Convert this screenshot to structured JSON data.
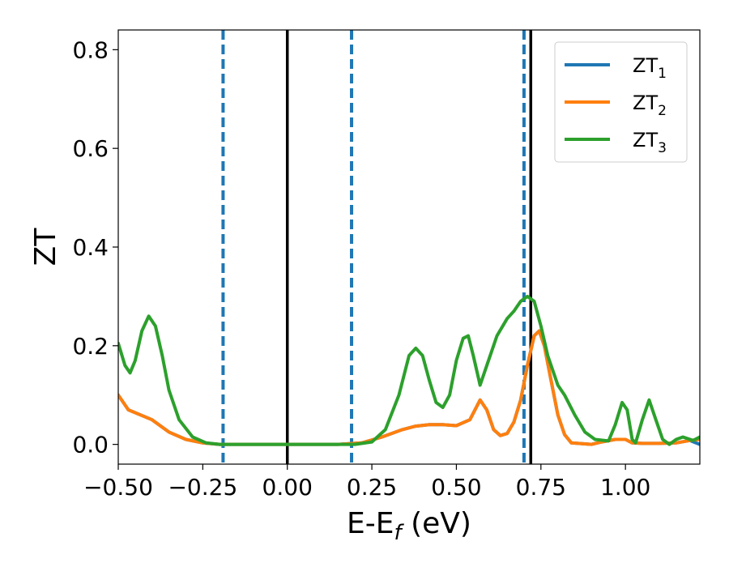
{
  "chart_data": {
    "type": "line",
    "xlabel": "E-E",
    "xlabel_sub": "f",
    "xlabel_unit": " (eV)",
    "ylabel": "ZT",
    "xlim": [
      -0.5,
      1.22
    ],
    "ylim": [
      -0.04,
      0.84
    ],
    "x_ticks": [
      -0.5,
      -0.25,
      0.0,
      0.25,
      0.5,
      0.75,
      1.0
    ],
    "x_tick_labels": [
      "−0.50",
      "−0.25",
      "0.00",
      "0.25",
      "0.50",
      "0.75",
      "1.00"
    ],
    "y_ticks": [
      0.0,
      0.2,
      0.4,
      0.6,
      0.8
    ],
    "y_tick_labels": [
      "0.0",
      "0.2",
      "0.4",
      "0.6",
      "0.8"
    ],
    "grid": false,
    "legend_position": "top-right",
    "vlines": [
      {
        "x": -0.19,
        "style": "dashed",
        "color": "#1f77b4"
      },
      {
        "x": 0.19,
        "style": "dashed",
        "color": "#1f77b4"
      },
      {
        "x": 0.7,
        "style": "dashed",
        "color": "#1f77b4"
      },
      {
        "x": 0.0,
        "style": "solid",
        "color": "#000000"
      },
      {
        "x": 0.72,
        "style": "solid",
        "color": "#000000"
      }
    ],
    "series": [
      {
        "name": "ZT",
        "name_sub": "1",
        "color": "#1f77b4",
        "points": [
          [
            -0.5,
            0.1
          ],
          [
            -0.47,
            0.07
          ],
          [
            -0.4,
            0.05
          ],
          [
            -0.35,
            0.025
          ],
          [
            -0.3,
            0.01
          ],
          [
            -0.25,
            0.003
          ],
          [
            -0.2,
            0.0
          ],
          [
            0.0,
            0.0
          ],
          [
            0.15,
            0.0
          ],
          [
            0.22,
            0.003
          ],
          [
            0.28,
            0.015
          ],
          [
            0.34,
            0.03
          ],
          [
            0.38,
            0.037
          ],
          [
            0.42,
            0.04
          ],
          [
            0.46,
            0.04
          ],
          [
            0.5,
            0.038
          ],
          [
            0.54,
            0.05
          ],
          [
            0.57,
            0.09
          ],
          [
            0.59,
            0.07
          ],
          [
            0.61,
            0.03
          ],
          [
            0.63,
            0.018
          ],
          [
            0.65,
            0.022
          ],
          [
            0.67,
            0.045
          ],
          [
            0.69,
            0.09
          ],
          [
            0.71,
            0.16
          ],
          [
            0.73,
            0.22
          ],
          [
            0.745,
            0.23
          ],
          [
            0.76,
            0.2
          ],
          [
            0.78,
            0.13
          ],
          [
            0.8,
            0.06
          ],
          [
            0.82,
            0.02
          ],
          [
            0.84,
            0.003
          ],
          [
            0.9,
            0.0
          ],
          [
            0.93,
            0.005
          ],
          [
            0.97,
            0.01
          ],
          [
            1.0,
            0.01
          ],
          [
            1.02,
            0.003
          ],
          [
            1.05,
            0.002
          ],
          [
            1.1,
            0.002
          ],
          [
            1.15,
            0.003
          ],
          [
            1.19,
            0.008
          ],
          [
            1.22,
            0.0
          ]
        ]
      },
      {
        "name": "ZT",
        "name_sub": "2",
        "color": "#ff7f0e",
        "points": [
          [
            -0.5,
            0.1
          ],
          [
            -0.47,
            0.07
          ],
          [
            -0.4,
            0.05
          ],
          [
            -0.35,
            0.025
          ],
          [
            -0.3,
            0.01
          ],
          [
            -0.25,
            0.003
          ],
          [
            -0.2,
            0.0
          ],
          [
            0.0,
            0.0
          ],
          [
            0.15,
            0.0
          ],
          [
            0.22,
            0.003
          ],
          [
            0.28,
            0.015
          ],
          [
            0.34,
            0.03
          ],
          [
            0.38,
            0.037
          ],
          [
            0.42,
            0.04
          ],
          [
            0.46,
            0.04
          ],
          [
            0.5,
            0.038
          ],
          [
            0.54,
            0.05
          ],
          [
            0.57,
            0.09
          ],
          [
            0.59,
            0.07
          ],
          [
            0.61,
            0.03
          ],
          [
            0.63,
            0.018
          ],
          [
            0.65,
            0.022
          ],
          [
            0.67,
            0.045
          ],
          [
            0.69,
            0.09
          ],
          [
            0.71,
            0.16
          ],
          [
            0.73,
            0.22
          ],
          [
            0.745,
            0.23
          ],
          [
            0.76,
            0.2
          ],
          [
            0.78,
            0.13
          ],
          [
            0.8,
            0.06
          ],
          [
            0.82,
            0.02
          ],
          [
            0.84,
            0.003
          ],
          [
            0.9,
            0.0
          ],
          [
            0.93,
            0.005
          ],
          [
            0.97,
            0.01
          ],
          [
            1.0,
            0.01
          ],
          [
            1.02,
            0.003
          ],
          [
            1.05,
            0.002
          ],
          [
            1.1,
            0.002
          ],
          [
            1.15,
            0.003
          ],
          [
            1.19,
            0.008
          ],
          [
            1.22,
            0.01
          ]
        ]
      },
      {
        "name": "ZT",
        "name_sub": "3",
        "color": "#2ca02c",
        "points": [
          [
            -0.5,
            0.205
          ],
          [
            -0.48,
            0.16
          ],
          [
            -0.465,
            0.145
          ],
          [
            -0.45,
            0.17
          ],
          [
            -0.43,
            0.23
          ],
          [
            -0.41,
            0.26
          ],
          [
            -0.39,
            0.24
          ],
          [
            -0.37,
            0.18
          ],
          [
            -0.35,
            0.11
          ],
          [
            -0.32,
            0.05
          ],
          [
            -0.28,
            0.015
          ],
          [
            -0.24,
            0.003
          ],
          [
            -0.2,
            0.0
          ],
          [
            0.0,
            0.0
          ],
          [
            0.2,
            0.0
          ],
          [
            0.25,
            0.005
          ],
          [
            0.29,
            0.03
          ],
          [
            0.33,
            0.1
          ],
          [
            0.36,
            0.18
          ],
          [
            0.38,
            0.195
          ],
          [
            0.4,
            0.18
          ],
          [
            0.42,
            0.13
          ],
          [
            0.44,
            0.085
          ],
          [
            0.46,
            0.075
          ],
          [
            0.48,
            0.1
          ],
          [
            0.5,
            0.17
          ],
          [
            0.52,
            0.215
          ],
          [
            0.535,
            0.22
          ],
          [
            0.55,
            0.18
          ],
          [
            0.57,
            0.12
          ],
          [
            0.59,
            0.16
          ],
          [
            0.62,
            0.22
          ],
          [
            0.65,
            0.255
          ],
          [
            0.67,
            0.27
          ],
          [
            0.69,
            0.29
          ],
          [
            0.71,
            0.3
          ],
          [
            0.73,
            0.29
          ],
          [
            0.75,
            0.24
          ],
          [
            0.77,
            0.18
          ],
          [
            0.8,
            0.12
          ],
          [
            0.82,
            0.1
          ],
          [
            0.85,
            0.06
          ],
          [
            0.88,
            0.025
          ],
          [
            0.91,
            0.01
          ],
          [
            0.95,
            0.007
          ],
          [
            0.97,
            0.04
          ],
          [
            0.99,
            0.085
          ],
          [
            1.005,
            0.07
          ],
          [
            1.02,
            0.01
          ],
          [
            1.03,
            0.003
          ],
          [
            1.05,
            0.05
          ],
          [
            1.07,
            0.09
          ],
          [
            1.09,
            0.05
          ],
          [
            1.11,
            0.01
          ],
          [
            1.13,
            0.0
          ],
          [
            1.15,
            0.01
          ],
          [
            1.17,
            0.015
          ],
          [
            1.2,
            0.008
          ],
          [
            1.22,
            0.015
          ]
        ]
      }
    ]
  }
}
